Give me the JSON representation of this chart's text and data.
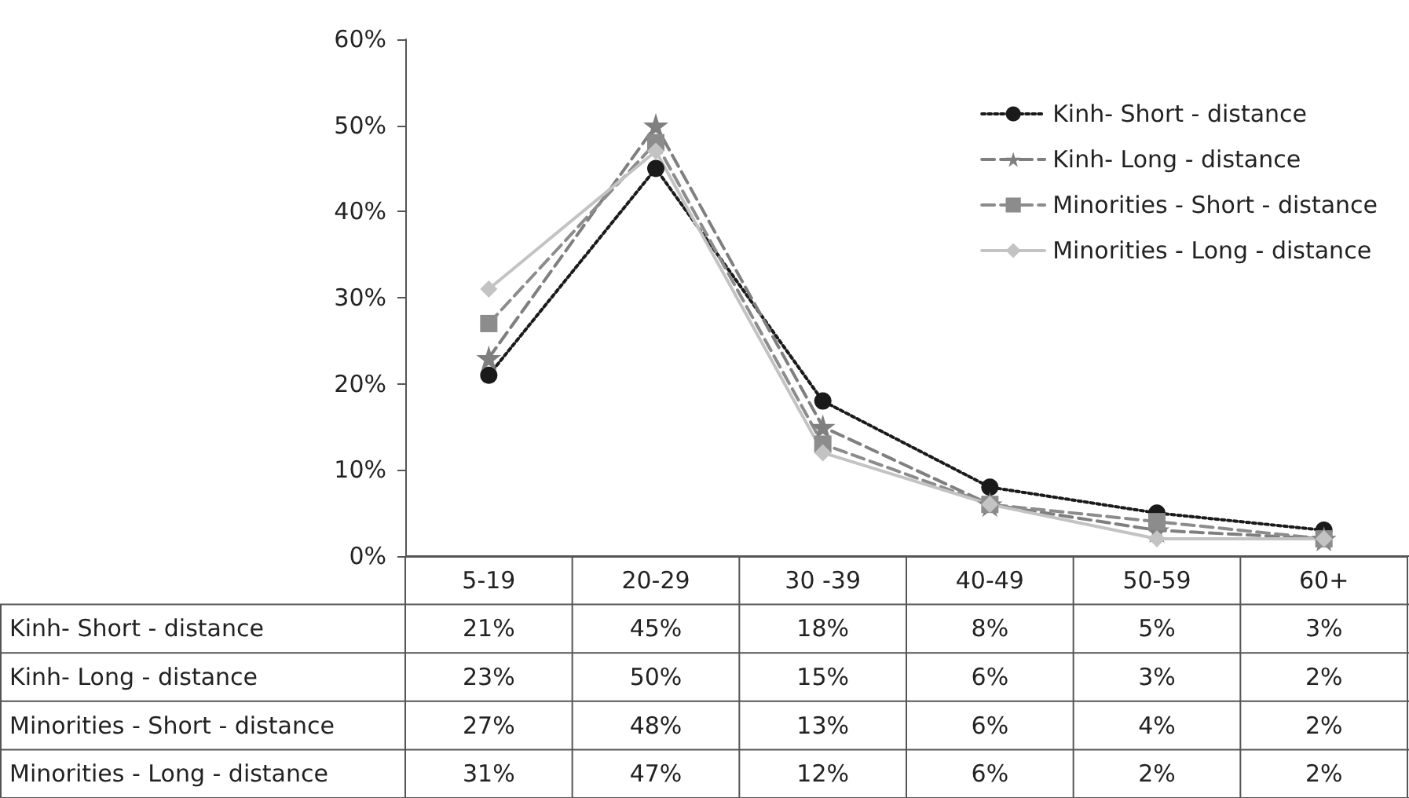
{
  "chart_data": {
    "type": "line",
    "categories": [
      "5-19",
      "20-29",
      "30 -39",
      "40-49",
      "50-59",
      "60+"
    ],
    "ylim": [
      0,
      60
    ],
    "yticks": [
      {
        "value": 0,
        "label": "0%"
      },
      {
        "value": 10,
        "label": "10%"
      },
      {
        "value": 20,
        "label": "20%"
      },
      {
        "value": 30,
        "label": "30%"
      },
      {
        "value": 40,
        "label": "40%"
      },
      {
        "value": 50,
        "label": "50%"
      },
      {
        "value": 60,
        "label": "60%"
      }
    ],
    "grid": false,
    "legend": "top right",
    "series": [
      {
        "name": "Kinh- Short - distance",
        "color": "#1a1a1a",
        "marker": "circle",
        "line_style": "dotted",
        "values": [
          21,
          45,
          18,
          8,
          5,
          3
        ],
        "value_labels": [
          "21%",
          "45%",
          "18%",
          "8%",
          "5%",
          "3%"
        ]
      },
      {
        "name": "Kinh- Long - distance",
        "color": "#7f7f7f",
        "marker": "star",
        "line_style": "dashed",
        "values": [
          23,
          50,
          15,
          6,
          3,
          2
        ],
        "value_labels": [
          "23%",
          "50%",
          "15%",
          "6%",
          "3%",
          "2%"
        ]
      },
      {
        "name": "Minorities - Short - distance",
        "color": "#8c8c8c",
        "marker": "square",
        "line_style": "dashed",
        "values": [
          27,
          48,
          13,
          6,
          4,
          2
        ],
        "value_labels": [
          "27%",
          "48%",
          "13%",
          "6%",
          "4%",
          "2%"
        ]
      },
      {
        "name": "Minorities - Long - distance",
        "color": "#c3c3c3",
        "marker": "diamond",
        "line_style": "solid",
        "values": [
          31,
          47,
          12,
          6,
          2,
          2
        ],
        "value_labels": [
          "31%",
          "47%",
          "12%",
          "6%",
          "2%",
          "2%"
        ]
      }
    ]
  }
}
